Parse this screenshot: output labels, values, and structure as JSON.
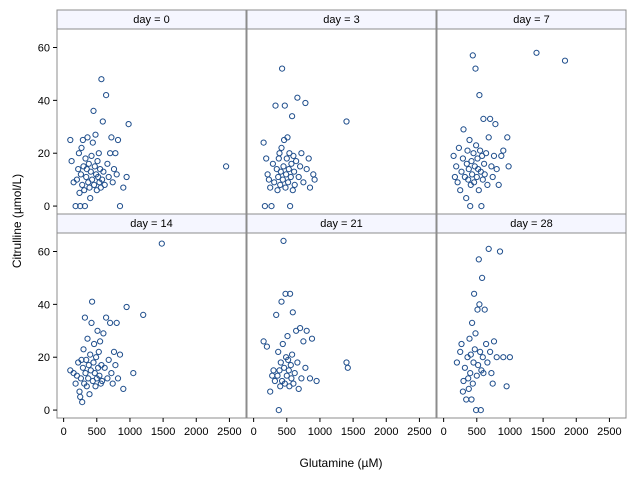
{
  "chart_data": {
    "type": "scatter",
    "xlabel": "Glutamine (µM)",
    "ylabel": "Citrulline (µmol/L)",
    "xlim": [
      -100,
      2750
    ],
    "ylim": [
      -3,
      67
    ],
    "xticks": [
      0,
      500,
      1000,
      1500,
      2000,
      2500
    ],
    "yticks": [
      0,
      20,
      40,
      60
    ],
    "marker_color": "#1f4e8c",
    "layout": "2x3 panel grid",
    "panels": [
      {
        "label": "day = 0",
        "points": [
          [
            100,
            25
          ],
          [
            120,
            17
          ],
          [
            150,
            9
          ],
          [
            180,
            0
          ],
          [
            200,
            10
          ],
          [
            220,
            14
          ],
          [
            230,
            20
          ],
          [
            240,
            5
          ],
          [
            250,
            0
          ],
          [
            260,
            12
          ],
          [
            270,
            22
          ],
          [
            280,
            8
          ],
          [
            290,
            25
          ],
          [
            300,
            15
          ],
          [
            310,
            6
          ],
          [
            320,
            0
          ],
          [
            330,
            18
          ],
          [
            340,
            11
          ],
          [
            350,
            14
          ],
          [
            360,
            26
          ],
          [
            370,
            9
          ],
          [
            380,
            16
          ],
          [
            390,
            7
          ],
          [
            400,
            3
          ],
          [
            410,
            13
          ],
          [
            420,
            19
          ],
          [
            430,
            10
          ],
          [
            440,
            24
          ],
          [
            450,
            36
          ],
          [
            460,
            8
          ],
          [
            470,
            15
          ],
          [
            480,
            27
          ],
          [
            490,
            12
          ],
          [
            500,
            6
          ],
          [
            510,
            17
          ],
          [
            520,
            11
          ],
          [
            530,
            20
          ],
          [
            540,
            9
          ],
          [
            550,
            14
          ],
          [
            560,
            7
          ],
          [
            570,
            48
          ],
          [
            580,
            10
          ],
          [
            590,
            32
          ],
          [
            600,
            13
          ],
          [
            620,
            8
          ],
          [
            640,
            42
          ],
          [
            660,
            16
          ],
          [
            680,
            11
          ],
          [
            700,
            20
          ],
          [
            720,
            26
          ],
          [
            740,
            9
          ],
          [
            760,
            14
          ],
          [
            780,
            20
          ],
          [
            800,
            12
          ],
          [
            820,
            25
          ],
          [
            850,
            0
          ],
          [
            900,
            7
          ],
          [
            950,
            11
          ],
          [
            980,
            31
          ],
          [
            2450,
            15
          ]
        ]
      },
      {
        "label": "day = 3",
        "points": [
          [
            150,
            24
          ],
          [
            170,
            0
          ],
          [
            190,
            18
          ],
          [
            210,
            12
          ],
          [
            230,
            10
          ],
          [
            250,
            7
          ],
          [
            270,
            0
          ],
          [
            290,
            16
          ],
          [
            310,
            9
          ],
          [
            330,
            38
          ],
          [
            350,
            14
          ],
          [
            360,
            6
          ],
          [
            370,
            11
          ],
          [
            380,
            18
          ],
          [
            390,
            20
          ],
          [
            400,
            8
          ],
          [
            410,
            13
          ],
          [
            420,
            22
          ],
          [
            430,
            52
          ],
          [
            440,
            10
          ],
          [
            450,
            15
          ],
          [
            460,
            25
          ],
          [
            470,
            38
          ],
          [
            480,
            7
          ],
          [
            490,
            12
          ],
          [
            500,
            18
          ],
          [
            510,
            26
          ],
          [
            520,
            9
          ],
          [
            530,
            14
          ],
          [
            540,
            20
          ],
          [
            550,
            0
          ],
          [
            560,
            11
          ],
          [
            570,
            16
          ],
          [
            580,
            34
          ],
          [
            590,
            6
          ],
          [
            600,
            19
          ],
          [
            610,
            13
          ],
          [
            620,
            8
          ],
          [
            640,
            17
          ],
          [
            660,
            41
          ],
          [
            680,
            11
          ],
          [
            700,
            15
          ],
          [
            720,
            20
          ],
          [
            750,
            9
          ],
          [
            780,
            39
          ],
          [
            800,
            14
          ],
          [
            830,
            18
          ],
          [
            850,
            7
          ],
          [
            900,
            12
          ],
          [
            920,
            10
          ],
          [
            1400,
            32
          ]
        ]
      },
      {
        "label": "day = 7",
        "points": [
          [
            150,
            19
          ],
          [
            170,
            11
          ],
          [
            190,
            15
          ],
          [
            210,
            9
          ],
          [
            230,
            22
          ],
          [
            250,
            6
          ],
          [
            270,
            13
          ],
          [
            290,
            18
          ],
          [
            300,
            29
          ],
          [
            320,
            11
          ],
          [
            340,
            3
          ],
          [
            350,
            16
          ],
          [
            360,
            21
          ],
          [
            370,
            10
          ],
          [
            380,
            14
          ],
          [
            390,
            25
          ],
          [
            400,
            0
          ],
          [
            410,
            8
          ],
          [
            420,
            17
          ],
          [
            430,
            12
          ],
          [
            440,
            57
          ],
          [
            450,
            20
          ],
          [
            460,
            9
          ],
          [
            470,
            15
          ],
          [
            480,
            52
          ],
          [
            490,
            23
          ],
          [
            500,
            11
          ],
          [
            510,
            18
          ],
          [
            520,
            14
          ],
          [
            530,
            6
          ],
          [
            540,
            42
          ],
          [
            550,
            21
          ],
          [
            560,
            13
          ],
          [
            570,
            0
          ],
          [
            580,
            19
          ],
          [
            590,
            10
          ],
          [
            600,
            33
          ],
          [
            610,
            16
          ],
          [
            620,
            12
          ],
          [
            640,
            20
          ],
          [
            660,
            8
          ],
          [
            680,
            26
          ],
          [
            700,
            33
          ],
          [
            720,
            15
          ],
          [
            740,
            11
          ],
          [
            760,
            19
          ],
          [
            780,
            31
          ],
          [
            800,
            14
          ],
          [
            830,
            8
          ],
          [
            870,
            19
          ],
          [
            900,
            21
          ],
          [
            960,
            26
          ],
          [
            980,
            15
          ],
          [
            1400,
            58
          ],
          [
            1830,
            55
          ]
        ]
      },
      {
        "label": "day = 14",
        "points": [
          [
            100,
            15
          ],
          [
            150,
            14
          ],
          [
            180,
            10
          ],
          [
            200,
            13
          ],
          [
            220,
            18
          ],
          [
            240,
            7
          ],
          [
            250,
            5
          ],
          [
            260,
            12
          ],
          [
            270,
            19
          ],
          [
            280,
            3
          ],
          [
            290,
            16
          ],
          [
            300,
            23
          ],
          [
            310,
            10
          ],
          [
            320,
            35
          ],
          [
            330,
            14
          ],
          [
            340,
            19
          ],
          [
            350,
            9
          ],
          [
            360,
            27
          ],
          [
            370,
            12
          ],
          [
            380,
            17
          ],
          [
            390,
            6
          ],
          [
            400,
            21
          ],
          [
            410,
            15
          ],
          [
            420,
            33
          ],
          [
            430,
            41
          ],
          [
            440,
            11
          ],
          [
            450,
            18
          ],
          [
            460,
            25
          ],
          [
            470,
            14
          ],
          [
            480,
            9
          ],
          [
            490,
            20
          ],
          [
            500,
            12
          ],
          [
            510,
            30
          ],
          [
            520,
            16
          ],
          [
            530,
            22
          ],
          [
            540,
            13
          ],
          [
            550,
            26
          ],
          [
            560,
            10
          ],
          [
            570,
            17
          ],
          [
            580,
            11
          ],
          [
            600,
            29
          ],
          [
            620,
            16
          ],
          [
            640,
            35
          ],
          [
            660,
            12
          ],
          [
            680,
            19
          ],
          [
            700,
            33
          ],
          [
            720,
            14
          ],
          [
            740,
            10
          ],
          [
            760,
            22
          ],
          [
            780,
            17
          ],
          [
            800,
            33
          ],
          [
            820,
            12
          ],
          [
            850,
            21
          ],
          [
            900,
            8
          ],
          [
            950,
            39
          ],
          [
            1050,
            14
          ],
          [
            1200,
            36
          ],
          [
            1480,
            63
          ]
        ]
      },
      {
        "label": "day = 21",
        "points": [
          [
            150,
            26
          ],
          [
            200,
            24
          ],
          [
            250,
            7
          ],
          [
            280,
            13
          ],
          [
            300,
            15
          ],
          [
            320,
            11
          ],
          [
            340,
            36
          ],
          [
            360,
            13
          ],
          [
            370,
            22
          ],
          [
            380,
            0
          ],
          [
            390,
            15
          ],
          [
            400,
            9
          ],
          [
            410,
            18
          ],
          [
            420,
            41
          ],
          [
            430,
            11
          ],
          [
            440,
            25
          ],
          [
            450,
            64
          ],
          [
            460,
            16
          ],
          [
            470,
            10
          ],
          [
            480,
            44
          ],
          [
            490,
            20
          ],
          [
            500,
            13
          ],
          [
            510,
            28
          ],
          [
            520,
            19
          ],
          [
            530,
            15
          ],
          [
            540,
            9
          ],
          [
            550,
            44
          ],
          [
            560,
            17
          ],
          [
            570,
            12
          ],
          [
            580,
            21
          ],
          [
            590,
            37
          ],
          [
            600,
            10
          ],
          [
            620,
            14
          ],
          [
            640,
            30
          ],
          [
            660,
            18
          ],
          [
            680,
            8
          ],
          [
            700,
            31
          ],
          [
            720,
            12
          ],
          [
            750,
            26
          ],
          [
            780,
            16
          ],
          [
            800,
            30
          ],
          [
            850,
            12
          ],
          [
            880,
            27
          ],
          [
            950,
            11
          ],
          [
            1400,
            18
          ],
          [
            1420,
            16
          ]
        ]
      },
      {
        "label": "day = 28",
        "points": [
          [
            200,
            18
          ],
          [
            250,
            22
          ],
          [
            270,
            25
          ],
          [
            290,
            7
          ],
          [
            300,
            11
          ],
          [
            320,
            16
          ],
          [
            340,
            4
          ],
          [
            360,
            20
          ],
          [
            370,
            12
          ],
          [
            380,
            8
          ],
          [
            390,
            27
          ],
          [
            400,
            14
          ],
          [
            410,
            21
          ],
          [
            420,
            4
          ],
          [
            430,
            33
          ],
          [
            440,
            10
          ],
          [
            450,
            18
          ],
          [
            460,
            44
          ],
          [
            470,
            23
          ],
          [
            480,
            29
          ],
          [
            490,
            0
          ],
          [
            500,
            13
          ],
          [
            510,
            38
          ],
          [
            520,
            17
          ],
          [
            530,
            57
          ],
          [
            540,
            40
          ],
          [
            550,
            22
          ],
          [
            560,
            0
          ],
          [
            570,
            15
          ],
          [
            580,
            50
          ],
          [
            590,
            20
          ],
          [
            600,
            14
          ],
          [
            620,
            38
          ],
          [
            640,
            25
          ],
          [
            660,
            18
          ],
          [
            680,
            61
          ],
          [
            700,
            22
          ],
          [
            720,
            14
          ],
          [
            740,
            10
          ],
          [
            760,
            26
          ],
          [
            800,
            20
          ],
          [
            850,
            60
          ],
          [
            900,
            20
          ],
          [
            950,
            9
          ],
          [
            1000,
            20
          ]
        ]
      }
    ]
  }
}
